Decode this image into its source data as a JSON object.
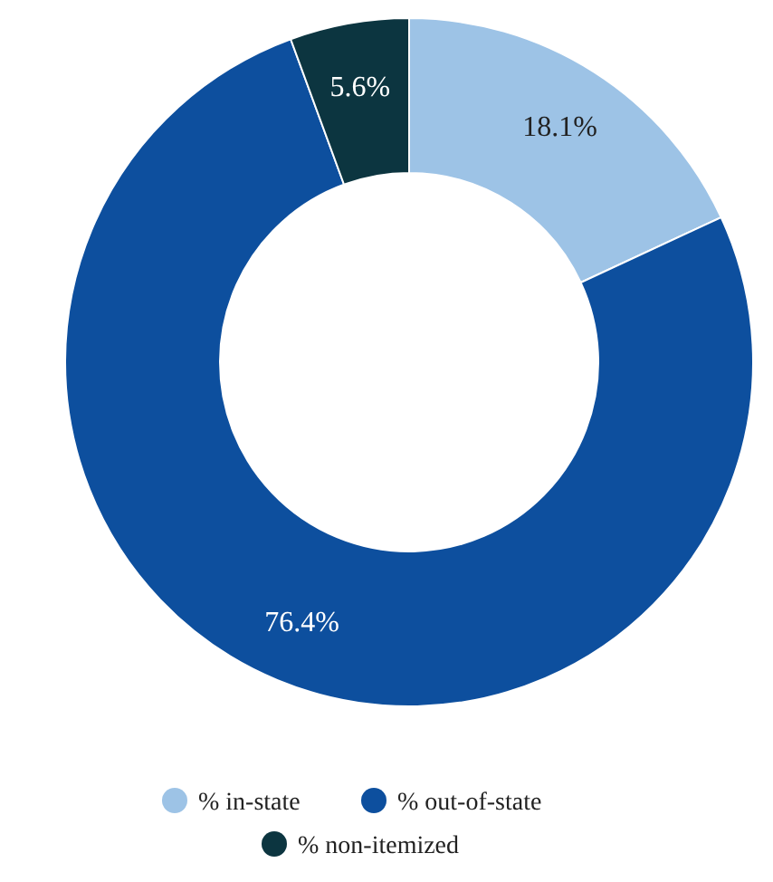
{
  "chart_data": {
    "type": "donut",
    "categories": [
      "% in-state",
      "% out-of-state",
      "% non-itemized"
    ],
    "values": [
      18.1,
      76.4,
      5.6
    ],
    "colors": [
      "#9dc3e6",
      "#0d4f9e",
      "#0c3540"
    ],
    "value_labels": [
      "18.1%",
      "76.4%",
      "5.6%"
    ],
    "legend": "bottom"
  }
}
